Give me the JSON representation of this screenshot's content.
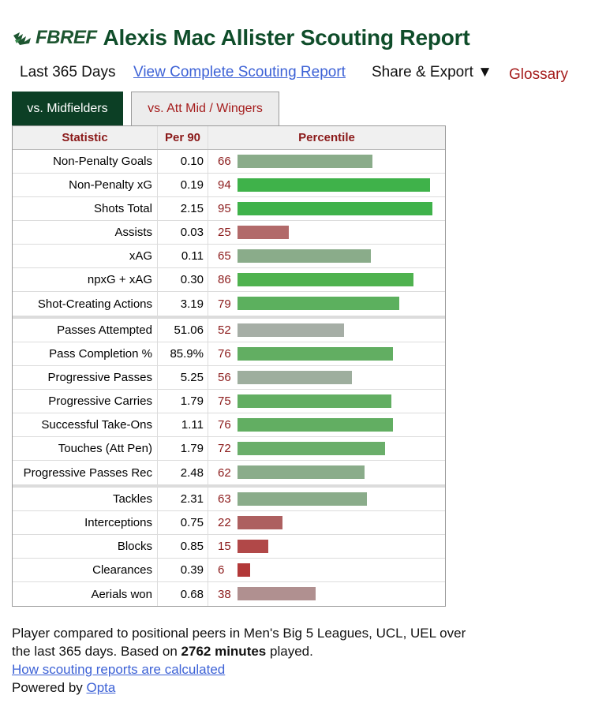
{
  "header": {
    "logo_text": "FBREF",
    "title": "Alexis Mac Allister Scouting Report"
  },
  "nav": {
    "period": "Last 365 Days",
    "full_report_link": "View Complete Scouting Report",
    "share_export": "Share & Export ▼",
    "glossary": "Glossary"
  },
  "tabs": [
    {
      "label": "vs. Midfielders",
      "active": true
    },
    {
      "label": "vs. Att Mid / Wingers",
      "active": false
    }
  ],
  "table": {
    "columns": [
      "Statistic",
      "Per 90",
      "Percentile"
    ],
    "groups": [
      [
        {
          "stat": "Non-Penalty Goals",
          "per90": "0.10",
          "pct": 66,
          "color": "#8aac8a"
        },
        {
          "stat": "Non-Penalty xG",
          "per90": "0.19",
          "pct": 94,
          "color": "#3fb24a"
        },
        {
          "stat": "Shots Total",
          "per90": "2.15",
          "pct": 95,
          "color": "#3fb24a"
        },
        {
          "stat": "Assists",
          "per90": "0.03",
          "pct": 25,
          "color": "#b26a6a"
        },
        {
          "stat": "xAG",
          "per90": "0.11",
          "pct": 65,
          "color": "#8aac8a"
        },
        {
          "stat": "npxG + xAG",
          "per90": "0.30",
          "pct": 86,
          "color": "#4fb24f"
        },
        {
          "stat": "Shot-Creating Actions",
          "per90": "3.19",
          "pct": 79,
          "color": "#5cb05e"
        }
      ],
      [
        {
          "stat": "Passes Attempted",
          "per90": "51.06",
          "pct": 52,
          "color": "#a6aea6"
        },
        {
          "stat": "Pass Completion %",
          "per90": "85.9%",
          "pct": 76,
          "color": "#62ae62"
        },
        {
          "stat": "Progressive Passes",
          "per90": "5.25",
          "pct": 56,
          "color": "#9eae9e"
        },
        {
          "stat": "Progressive Carries",
          "per90": "1.79",
          "pct": 75,
          "color": "#62ae62"
        },
        {
          "stat": "Successful Take-Ons",
          "per90": "1.11",
          "pct": 76,
          "color": "#62ae62"
        },
        {
          "stat": "Touches (Att Pen)",
          "per90": "1.79",
          "pct": 72,
          "color": "#6aae6a"
        },
        {
          "stat": "Progressive Passes Rec",
          "per90": "2.48",
          "pct": 62,
          "color": "#8aac8a"
        }
      ],
      [
        {
          "stat": "Tackles",
          "per90": "2.31",
          "pct": 63,
          "color": "#8aac8a"
        },
        {
          "stat": "Interceptions",
          "per90": "0.75",
          "pct": 22,
          "color": "#ad6060"
        },
        {
          "stat": "Blocks",
          "per90": "0.85",
          "pct": 15,
          "color": "#b14848"
        },
        {
          "stat": "Clearances",
          "per90": "0.39",
          "pct": 6,
          "color": "#b23838"
        },
        {
          "stat": "Aerials won",
          "per90": "0.68",
          "pct": 38,
          "color": "#b09090"
        }
      ]
    ]
  },
  "footer": {
    "line1": "Player compared to positional peers in Men's Big 5 Leagues, UCL, UEL over",
    "line2_pre": "the last 365 days. Based on ",
    "minutes": "2762 minutes",
    "line2_post": " played.",
    "calc_link": "How scouting reports are calculated",
    "powered_by": "Powered by ",
    "opta_link": "Opta"
  }
}
